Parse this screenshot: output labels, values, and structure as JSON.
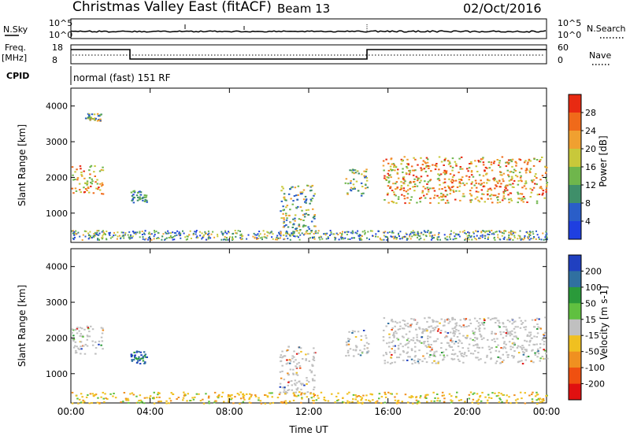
{
  "header": {
    "title": "Christmas Valley East (fitACF)",
    "beam": "Beam 13",
    "date": "02/Oct/2016"
  },
  "strips": {
    "nsky_label": "N.Sky",
    "nsky_top": "10^5",
    "nsky_bottom": "10^0",
    "nsearch_label": "N.Search",
    "nsearch_top": "10^5",
    "nsearch_bottom": "10^0",
    "freq_label_1": "Freq.",
    "freq_label_2": "[MHz]",
    "freq_top": "18",
    "freq_bottom": "8",
    "nave_label": "Nave",
    "nave_top": "60",
    "nave_bottom": "0",
    "cpid_label": "CPID",
    "cpid_value": "normal (fast) 151 RF"
  },
  "chart_data": [
    {
      "type": "heatmap",
      "name": "power-panel",
      "ylabel": "Slant Range [km]",
      "yticks": [
        "1000",
        "2000",
        "3000",
        "4000"
      ],
      "ylim": [
        180,
        4500
      ],
      "colorbar_label": "Power [dB]",
      "colorbar_ticks": [
        "4",
        "8",
        "12",
        "16",
        "20",
        "24",
        "28"
      ],
      "colorbar_colors": [
        "#1f3fe0",
        "#2a5ec8",
        "#3f8f6a",
        "#6fb64c",
        "#c8c83a",
        "#f0a030",
        "#f06a1a",
        "#e82a12"
      ],
      "regions": [
        {
          "t": [
            0.0,
            1.6
          ],
          "r": [
            1550,
            2350
          ],
          "level": "high"
        },
        {
          "t": [
            0.7,
            1.5
          ],
          "r": [
            3600,
            3800
          ],
          "level": "mid"
        },
        {
          "t": [
            3.0,
            3.8
          ],
          "r": [
            1300,
            1650
          ],
          "level": "low"
        },
        {
          "t": [
            10.5,
            12.3
          ],
          "r": [
            400,
            1800
          ],
          "level": "mid"
        },
        {
          "t": [
            13.8,
            15.0
          ],
          "r": [
            1500,
            2250
          ],
          "level": "mid"
        },
        {
          "t": [
            15.7,
            24.0
          ],
          "r": [
            1300,
            2600
          ],
          "level": "high"
        }
      ]
    },
    {
      "type": "heatmap",
      "name": "velocity-panel",
      "xlabel": "Time UT",
      "xticks": [
        "00:00",
        "04:00",
        "08:00",
        "12:00",
        "16:00",
        "20:00",
        "00:00"
      ],
      "xlim": [
        0,
        24
      ],
      "ylabel": "Slant Range [km]",
      "yticks": [
        "1000",
        "2000",
        "3000",
        "4000"
      ],
      "ylim": [
        180,
        4500
      ],
      "colorbar_label": "Velocity [m s-1]",
      "colorbar_ticks": [
        "200",
        "100",
        "50",
        "15",
        "-15",
        "-50",
        "-100",
        "-200"
      ],
      "colorbar_colors": [
        "#2040c0",
        "#3070a0",
        "#2a9a3a",
        "#60c040",
        "#c0c0c0",
        "#f0c020",
        "#f09020",
        "#f05010",
        "#e01010"
      ],
      "regions": [
        {
          "t": [
            0.0,
            1.6
          ],
          "r": [
            1550,
            2350
          ],
          "level": "grey"
        },
        {
          "t": [
            3.0,
            3.8
          ],
          "r": [
            1300,
            1650
          ],
          "level": "blue"
        },
        {
          "t": [
            10.5,
            12.3
          ],
          "r": [
            400,
            1800
          ],
          "level": "grey"
        },
        {
          "t": [
            13.8,
            15.0
          ],
          "r": [
            1500,
            2250
          ],
          "level": "grey"
        },
        {
          "t": [
            15.7,
            24.0
          ],
          "r": [
            1300,
            2600
          ],
          "level": "grey"
        },
        {
          "t": [
            0.0,
            24.0
          ],
          "r": [
            180,
            500
          ],
          "level": "ground"
        }
      ]
    }
  ]
}
